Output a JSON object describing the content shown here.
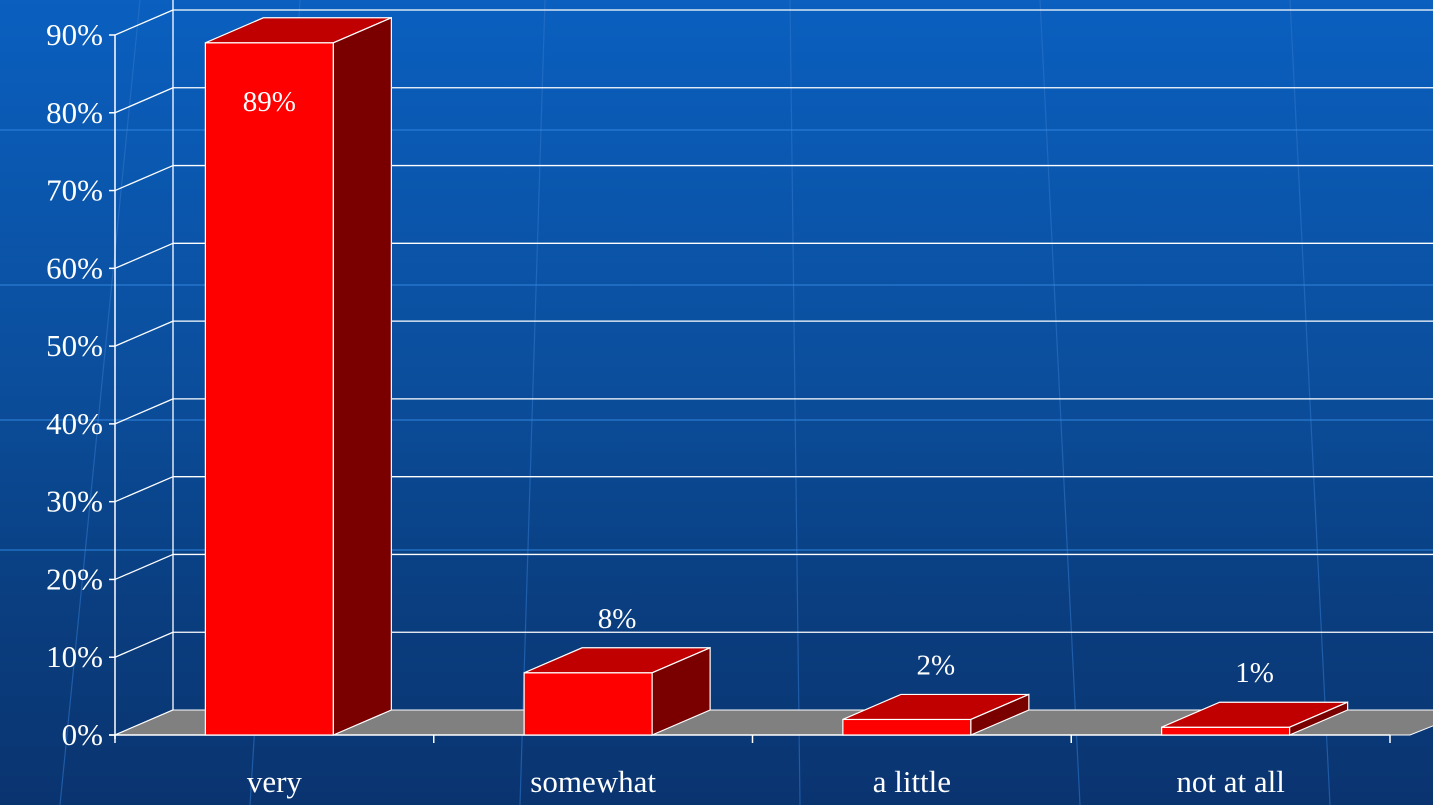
{
  "chart_data": {
    "type": "bar",
    "categories": [
      "very",
      "somewhat",
      "a little",
      "not at all"
    ],
    "values": [
      89,
      8,
      2,
      1
    ],
    "data_labels": [
      "89%",
      "8%",
      "2%",
      "1%"
    ],
    "y_ticks": [
      "0%",
      "10%",
      "20%",
      "30%",
      "40%",
      "50%",
      "60%",
      "70%",
      "80%",
      "90%"
    ],
    "ylim": [
      0,
      90
    ],
    "title": "",
    "xlabel": "",
    "ylabel": "",
    "grid": true,
    "three_d": true,
    "legend": "none",
    "colors": {
      "bar_front": "#ff0000",
      "bar_top": "#c00000",
      "bar_side": "#7a0000",
      "floor": "#808080",
      "grid": "#ffffff",
      "text": "#ffffff"
    }
  }
}
